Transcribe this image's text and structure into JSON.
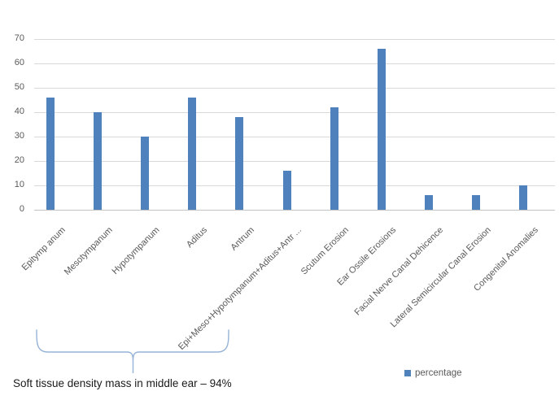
{
  "chart_data": {
    "type": "bar",
    "title": "",
    "xlabel": "",
    "ylabel": "",
    "categories": [
      "Epitymp anum",
      "Mesotympanum",
      "Hypotympanum",
      "Aditus",
      "Antrum",
      "Epi+Meso+Hypotympanum+Aditus+Antr ...",
      "Scutum Erosion",
      "Ear Ossile Erosions",
      "Facial Nerve Canal Dehicence",
      "Lateral Semicircular Canal Erosion",
      "Congenital Anomalies"
    ],
    "series": [
      {
        "name": "percentage",
        "values": [
          46,
          40,
          30,
          46,
          38,
          16,
          42,
          66,
          6,
          6,
          10
        ]
      }
    ],
    "ylim": [
      0,
      70
    ],
    "yticks": [
      0,
      10,
      20,
      30,
      40,
      50,
      60,
      70
    ],
    "grid": true,
    "legend": {
      "label": "percentage",
      "position": "bottom-right"
    },
    "annotation": "Soft tissue density mass in middle ear – 94%"
  },
  "colors": {
    "bar": "#4F81BD",
    "gridline": "#D9D9D9",
    "baseline": "#C3C3C3",
    "axis_text": "#595959",
    "brace": "#95B3D7",
    "annotation_text": "#1A1A1A"
  }
}
